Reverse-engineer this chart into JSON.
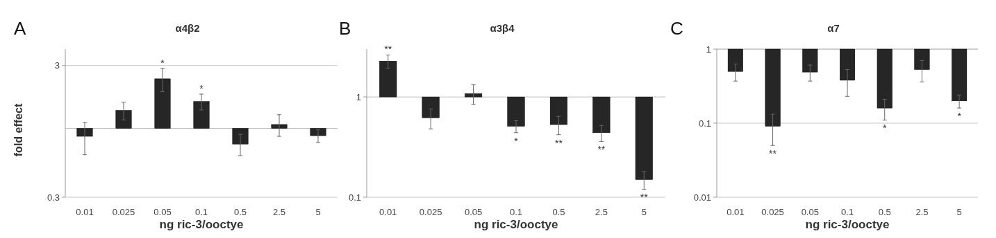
{
  "chart_data": [
    {
      "type": "bar",
      "title": "α4β2",
      "ylabel": "fold effect",
      "xlabel": "ng ric-3/ooctye",
      "log": true,
      "grid": "y",
      "categories": [
        "0.01",
        "0.025",
        "0.05",
        "0.1",
        "0.5",
        "2.5",
        "5"
      ],
      "base": [
        1,
        1,
        1,
        1,
        1,
        1,
        1
      ],
      "values": [
        -0.13,
        0.37,
        1.38,
        0.6,
        -0.24,
        0.07,
        -0.12
      ],
      "errors": [
        0.24,
        0.21,
        0.48,
        0.22,
        0.14,
        0.2,
        0.1
      ],
      "value_labels": [
        null,
        null,
        "*",
        "*",
        null,
        null,
        null
      ],
      "color": "#262626",
      "ylim": [
        0.3,
        4
      ],
      "yticks": [
        0.3,
        3
      ],
      "ref_lines": [
        {
          "axis": "y",
          "value": 1,
          "color": "#bbbbbb"
        }
      ],
      "annotations": [
        "A"
      ]
    },
    {
      "type": "bar",
      "title": "α3β4",
      "xlabel": "ng ric-3/ooctye",
      "log": true,
      "categories": [
        "0.01",
        "0.025",
        "0.05",
        "0.1",
        "0.5",
        "2.5",
        "5"
      ],
      "base": [
        1,
        1,
        1,
        1,
        1,
        1,
        1
      ],
      "values": [
        1.28,
        -0.38,
        0.08,
        -0.49,
        -0.47,
        -0.56,
        -0.85
      ],
      "errors": [
        0.34,
        0.14,
        0.24,
        0.07,
        0.11,
        0.08,
        0.03
      ],
      "value_labels": [
        "**",
        null,
        null,
        "*",
        "**",
        "**",
        "**"
      ],
      "color": "#262626",
      "ylim": [
        0.1,
        3
      ],
      "yticks": [
        0.1,
        1
      ],
      "ref_lines": [
        {
          "axis": "y",
          "value": 1,
          "color": "#bbbbbb"
        }
      ],
      "annotations": [
        "B"
      ]
    },
    {
      "type": "bar",
      "title": "α7",
      "xlabel": "ng ric-3/ooctye",
      "log": true,
      "grid": "y",
      "categories": [
        "0.01",
        "0.025",
        "0.05",
        "0.1",
        "0.5",
        "2.5",
        "5"
      ],
      "base": [
        1,
        1,
        1,
        1,
        1,
        1,
        1
      ],
      "values": [
        -0.5,
        -0.909,
        -0.51,
        -0.62,
        -0.84,
        -0.47,
        -0.8
      ],
      "errors": [
        0.13,
        0.041,
        0.12,
        0.15,
        0.05,
        0.17,
        0.04
      ],
      "value_labels": [
        null,
        "**",
        null,
        null,
        "*",
        null,
        "*"
      ],
      "color": "#262626",
      "ylim": [
        0.01,
        1
      ],
      "yticks": [
        0.01,
        0.1,
        1
      ],
      "ref_lines": [
        {
          "axis": "y",
          "value": 1,
          "color": "#bbbbbb"
        }
      ],
      "annotations": [
        "C"
      ]
    }
  ]
}
